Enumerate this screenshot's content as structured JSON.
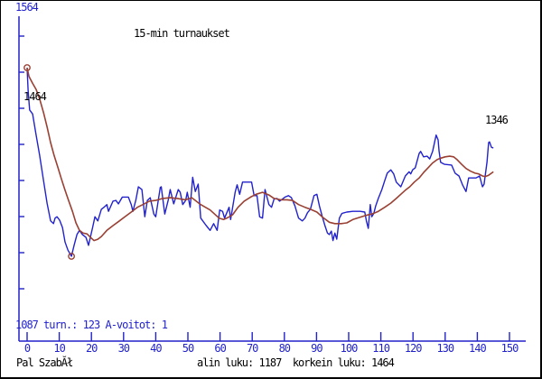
{
  "labels": {
    "title": "15-min turnaukset",
    "y_top": "1564",
    "y_bottom": "1087",
    "stats": "turn.: 123 A-voitot: 1",
    "start_value": "1464",
    "final_value": "1346",
    "player": "Pal SzabĂł",
    "summary": "alin luku: 1187  korkein luku: 1464"
  },
  "colors": {
    "axis_blue": "#2222cc",
    "line_blue": "#2222cc",
    "average_brown": "#994033",
    "text_black": "#000000",
    "background": "#ffffff",
    "border": "#000000"
  },
  "chart_data": {
    "type": "line",
    "title": "15-min turnaukset",
    "xlabel": "",
    "ylabel": "",
    "x_range": [
      0,
      150
    ],
    "y_range": [
      1087,
      1564
    ],
    "x_ticks": [
      "0",
      "10",
      "20",
      "30",
      "40",
      "50",
      "60",
      "70",
      "80",
      "90",
      "100",
      "110",
      "120",
      "130",
      "140",
      "150"
    ],
    "grid": false,
    "legend": "none",
    "stats": {
      "tournaments": 123,
      "a_wins": 1,
      "lowest": 1187,
      "highest": 1464,
      "first": 1464,
      "last": 1346
    },
    "markers": [
      {
        "t": 0,
        "r": 1464,
        "name": "start-max"
      },
      {
        "t": 13.8,
        "r": 1187,
        "name": "minimum"
      }
    ],
    "marker_color": "#994033",
    "series": [
      {
        "name": "rating",
        "color": "#2222cc",
        "points": [
          [
            0,
            1464
          ],
          [
            0.3,
            1431
          ],
          [
            0.8,
            1402
          ],
          [
            1.7,
            1396
          ],
          [
            2.8,
            1365
          ],
          [
            3.9,
            1335
          ],
          [
            5.1,
            1298
          ],
          [
            6.2,
            1265
          ],
          [
            7.3,
            1239
          ],
          [
            8.2,
            1235
          ],
          [
            8.7,
            1243
          ],
          [
            9.3,
            1245
          ],
          [
            10.1,
            1240
          ],
          [
            11,
            1229
          ],
          [
            11.8,
            1208
          ],
          [
            12.7,
            1196
          ],
          [
            13.8,
            1187
          ],
          [
            14.6,
            1203
          ],
          [
            15.5,
            1219
          ],
          [
            16.3,
            1225
          ],
          [
            17.2,
            1219
          ],
          [
            18.3,
            1215
          ],
          [
            19.1,
            1203
          ],
          [
            20.3,
            1228
          ],
          [
            21.1,
            1245
          ],
          [
            22,
            1239
          ],
          [
            23.1,
            1256
          ],
          [
            23.9,
            1259
          ],
          [
            24.8,
            1263
          ],
          [
            25.3,
            1253
          ],
          [
            26.7,
            1268
          ],
          [
            27.6,
            1269
          ],
          [
            28.4,
            1264
          ],
          [
            29.6,
            1274
          ],
          [
            31.5,
            1274
          ],
          [
            32.4,
            1263
          ],
          [
            32.9,
            1253
          ],
          [
            33.8,
            1269
          ],
          [
            34.6,
            1289
          ],
          [
            35.7,
            1285
          ],
          [
            36.6,
            1245
          ],
          [
            37.4,
            1269
          ],
          [
            38.3,
            1273
          ],
          [
            39.4,
            1249
          ],
          [
            40,
            1245
          ],
          [
            41.4,
            1288
          ],
          [
            41.7,
            1289
          ],
          [
            42.8,
            1249
          ],
          [
            43.9,
            1270
          ],
          [
            44.5,
            1285
          ],
          [
            45.6,
            1264
          ],
          [
            47,
            1285
          ],
          [
            47.6,
            1281
          ],
          [
            48.4,
            1263
          ],
          [
            49.3,
            1269
          ],
          [
            49.8,
            1281
          ],
          [
            50.7,
            1259
          ],
          [
            51.5,
            1303
          ],
          [
            52.3,
            1282
          ],
          [
            53.2,
            1293
          ],
          [
            54,
            1243
          ],
          [
            55.7,
            1232
          ],
          [
            56.9,
            1225
          ],
          [
            58,
            1235
          ],
          [
            59.1,
            1225
          ],
          [
            59.9,
            1255
          ],
          [
            60.8,
            1253
          ],
          [
            61.4,
            1243
          ],
          [
            62.8,
            1259
          ],
          [
            63.3,
            1241
          ],
          [
            64.7,
            1281
          ],
          [
            65.3,
            1292
          ],
          [
            66.1,
            1278
          ],
          [
            67,
            1296
          ],
          [
            69.8,
            1296
          ],
          [
            70.6,
            1276
          ],
          [
            71.5,
            1276
          ],
          [
            72.3,
            1245
          ],
          [
            73.2,
            1243
          ],
          [
            74,
            1285
          ],
          [
            75.2,
            1263
          ],
          [
            76,
            1259
          ],
          [
            76.8,
            1271
          ],
          [
            77.7,
            1272
          ],
          [
            78.5,
            1268
          ],
          [
            79.4,
            1271
          ],
          [
            80.2,
            1274
          ],
          [
            81.3,
            1276
          ],
          [
            82.2,
            1273
          ],
          [
            83.3,
            1261
          ],
          [
            84.4,
            1243
          ],
          [
            85.6,
            1239
          ],
          [
            86.4,
            1243
          ],
          [
            87.2,
            1251
          ],
          [
            88.1,
            1256
          ],
          [
            89.2,
            1276
          ],
          [
            90.1,
            1278
          ],
          [
            90.9,
            1261
          ],
          [
            91.8,
            1245
          ],
          [
            92.6,
            1232
          ],
          [
            93.4,
            1221
          ],
          [
            94,
            1219
          ],
          [
            94.6,
            1224
          ],
          [
            95.1,
            1210
          ],
          [
            95.7,
            1221
          ],
          [
            96.3,
            1212
          ],
          [
            97.1,
            1243
          ],
          [
            97.9,
            1250
          ],
          [
            99.4,
            1252
          ],
          [
            101.3,
            1253
          ],
          [
            103.6,
            1253
          ],
          [
            105,
            1252
          ],
          [
            105.5,
            1239
          ],
          [
            106.1,
            1228
          ],
          [
            106.7,
            1263
          ],
          [
            107.2,
            1245
          ],
          [
            107.8,
            1250
          ],
          [
            108.4,
            1261
          ],
          [
            109.2,
            1272
          ],
          [
            110.3,
            1285
          ],
          [
            111.2,
            1298
          ],
          [
            112,
            1309
          ],
          [
            113.1,
            1314
          ],
          [
            114,
            1308
          ],
          [
            114.8,
            1296
          ],
          [
            116.2,
            1289
          ],
          [
            117.6,
            1305
          ],
          [
            118.8,
            1311
          ],
          [
            119.3,
            1308
          ],
          [
            119.9,
            1314
          ],
          [
            120.7,
            1317
          ],
          [
            121.9,
            1338
          ],
          [
            122.4,
            1341
          ],
          [
            123.3,
            1333
          ],
          [
            124.4,
            1334
          ],
          [
            125.2,
            1330
          ],
          [
            126.1,
            1341
          ],
          [
            127.2,
            1365
          ],
          [
            127.8,
            1358
          ],
          [
            128.1,
            1342
          ],
          [
            128.6,
            1325
          ],
          [
            129.8,
            1322
          ],
          [
            132,
            1321
          ],
          [
            133.1,
            1309
          ],
          [
            134.3,
            1305
          ],
          [
            135.4,
            1292
          ],
          [
            136.5,
            1282
          ],
          [
            137.3,
            1302
          ],
          [
            139.6,
            1302
          ],
          [
            140.7,
            1305
          ],
          [
            141.6,
            1289
          ],
          [
            142.1,
            1293
          ],
          [
            143,
            1325
          ],
          [
            143.5,
            1354
          ],
          [
            143.8,
            1355
          ],
          [
            144.4,
            1347
          ],
          [
            145,
            1346
          ]
        ]
      },
      {
        "name": "moving-average",
        "color": "#994033",
        "points": [
          [
            0,
            1464
          ],
          [
            0.6,
            1451
          ],
          [
            1.7,
            1441
          ],
          [
            2.8,
            1432
          ],
          [
            3.9,
            1418
          ],
          [
            5.1,
            1398
          ],
          [
            6.2,
            1377
          ],
          [
            7.3,
            1354
          ],
          [
            8.4,
            1335
          ],
          [
            9.6,
            1317
          ],
          [
            10.7,
            1300
          ],
          [
            11.8,
            1284
          ],
          [
            12.9,
            1269
          ],
          [
            14.1,
            1253
          ],
          [
            15.2,
            1236
          ],
          [
            16.3,
            1225
          ],
          [
            17.4,
            1221
          ],
          [
            18.6,
            1220
          ],
          [
            19.7,
            1215
          ],
          [
            20.8,
            1210
          ],
          [
            22,
            1212
          ],
          [
            23.1,
            1216
          ],
          [
            24.8,
            1225
          ],
          [
            26.7,
            1232
          ],
          [
            28.7,
            1239
          ],
          [
            30.4,
            1245
          ],
          [
            32.4,
            1252
          ],
          [
            34.3,
            1259
          ],
          [
            36,
            1263
          ],
          [
            38,
            1268
          ],
          [
            40,
            1269
          ],
          [
            42.2,
            1272
          ],
          [
            44.5,
            1273
          ],
          [
            46.7,
            1272
          ],
          [
            49.3,
            1270
          ],
          [
            51.2,
            1273
          ],
          [
            54,
            1263
          ],
          [
            56.9,
            1255
          ],
          [
            59.7,
            1243
          ],
          [
            61.1,
            1241
          ],
          [
            62.5,
            1244
          ],
          [
            63.9,
            1248
          ],
          [
            65.6,
            1259
          ],
          [
            67.5,
            1268
          ],
          [
            69.5,
            1274
          ],
          [
            71.2,
            1278
          ],
          [
            73.2,
            1281
          ],
          [
            75.2,
            1277
          ],
          [
            76.8,
            1272
          ],
          [
            78.8,
            1270
          ],
          [
            80.8,
            1270
          ],
          [
            82.5,
            1269
          ],
          [
            84.4,
            1263
          ],
          [
            86.4,
            1259
          ],
          [
            88.1,
            1256
          ],
          [
            90.1,
            1252
          ],
          [
            92,
            1244
          ],
          [
            94,
            1237
          ],
          [
            95.7,
            1235
          ],
          [
            97.7,
            1235
          ],
          [
            99.4,
            1236
          ],
          [
            101.3,
            1241
          ],
          [
            103.3,
            1244
          ],
          [
            105.3,
            1247
          ],
          [
            107.2,
            1249
          ],
          [
            109.2,
            1253
          ],
          [
            111.2,
            1259
          ],
          [
            113.1,
            1265
          ],
          [
            114.8,
            1272
          ],
          [
            116.2,
            1278
          ],
          [
            117.6,
            1284
          ],
          [
            119,
            1289
          ],
          [
            120.4,
            1296
          ],
          [
            121.9,
            1302
          ],
          [
            123.3,
            1310
          ],
          [
            124.7,
            1317
          ],
          [
            126.1,
            1324
          ],
          [
            127.5,
            1329
          ],
          [
            128.6,
            1331
          ],
          [
            130,
            1333
          ],
          [
            131.4,
            1334
          ],
          [
            132.6,
            1333
          ],
          [
            133.7,
            1329
          ],
          [
            135.1,
            1322
          ],
          [
            136.5,
            1316
          ],
          [
            137.9,
            1312
          ],
          [
            139.3,
            1309
          ],
          [
            140.4,
            1308
          ],
          [
            141.6,
            1305
          ],
          [
            142.4,
            1304
          ],
          [
            143.5,
            1306
          ],
          [
            145,
            1311
          ]
        ]
      }
    ]
  }
}
